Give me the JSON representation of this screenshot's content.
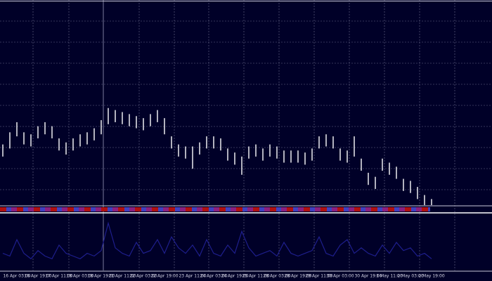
{
  "chart_data": {
    "type": "ohlc",
    "categories": [
      null,
      null,
      "16 Apr 03:00",
      null,
      null,
      "16 Apr 19:00",
      null,
      null,
      "17 Apr 11:00",
      null,
      null,
      "18 Apr 03:00",
      null,
      null,
      "18 Apr 19:00",
      null,
      null,
      "21 Apr 11:00",
      null,
      null,
      "22 Apr 03:00",
      null,
      null,
      "22 Apr 19:00",
      null,
      null,
      null,
      "23 Apr 11:00",
      null,
      null,
      "24 Apr 03:00",
      null,
      null,
      "24 Apr 19:00",
      null,
      null,
      "25 Apr 11:00",
      null,
      null,
      "28 Apr 03:00",
      null,
      null,
      "28 Apr 19:00",
      null,
      null,
      "29 Apr 11:00",
      null,
      null,
      "30 Apr 03:00",
      null,
      null,
      null,
      "30 Apr 19:00",
      null,
      null,
      "1 May 11:00",
      null,
      null,
      "2 May 03:00",
      null,
      null,
      "2 May 19:00"
    ],
    "high": [
      30,
      36,
      41,
      36,
      35,
      39,
      41,
      39,
      33,
      31,
      33,
      35,
      36,
      38,
      42,
      48,
      47,
      46,
      45,
      44,
      43,
      45,
      47,
      43,
      34,
      30,
      29,
      29,
      31,
      34,
      34,
      33,
      28,
      26,
      24,
      29,
      30,
      28,
      30,
      29,
      27,
      27,
      27,
      26,
      28,
      34,
      35,
      34,
      28,
      27,
      34,
      23,
      16,
      14,
      23,
      21,
      19,
      13,
      12,
      9,
      5,
      3
    ],
    "low": [
      24,
      28,
      34,
      30,
      29,
      33,
      35,
      33,
      27,
      25,
      27,
      29,
      30,
      32,
      35,
      40,
      41,
      40,
      39,
      38,
      37,
      39,
      41,
      35,
      28,
      24,
      23,
      18,
      25,
      28,
      28,
      27,
      22,
      20,
      15,
      23,
      24,
      22,
      24,
      23,
      21,
      21,
      21,
      20,
      22,
      28,
      29,
      28,
      22,
      21,
      24,
      17,
      10,
      8,
      17,
      15,
      13,
      7,
      6,
      3,
      0,
      0
    ],
    "color": "#ffffff",
    "ylim": [
      0,
      100
    ],
    "indicator": {
      "values": [
        30,
        25,
        55,
        30,
        20,
        35,
        25,
        20,
        45,
        30,
        25,
        20,
        30,
        25,
        35,
        85,
        40,
        30,
        25,
        50,
        30,
        35,
        55,
        30,
        60,
        40,
        30,
        45,
        25,
        55,
        30,
        25,
        45,
        30,
        70,
        40,
        25,
        30,
        35,
        25,
        50,
        30,
        25,
        30,
        35,
        60,
        30,
        25,
        45,
        55,
        30,
        40,
        30,
        25,
        45,
        30,
        50,
        35,
        40,
        25,
        30,
        20
      ],
      "color": "#1e1e8c",
      "ylim": [
        0,
        100
      ]
    }
  }
}
